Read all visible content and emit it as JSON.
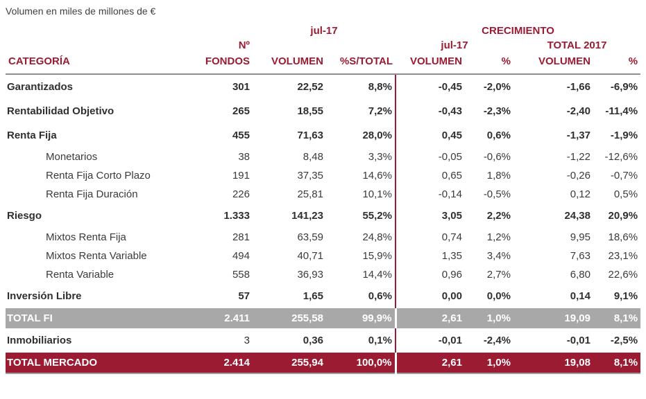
{
  "title": "Volumen en miles de millones de €",
  "colors": {
    "maroon": "#9A1B32",
    "gray_band": "#A8A8A8",
    "header_rule": "#8f8f8f",
    "text": "#3a3a3a"
  },
  "table": {
    "header": {
      "jul17_group": "jul-17",
      "crecimiento_group": "CRECIMIENTO",
      "num": "Nº",
      "crec_jul17": "jul-17",
      "total_2017": "TOTAL 2017",
      "categoria": "CATEGORÍA",
      "fondos": "FONDOS",
      "volumen": "VOLUMEN",
      "stotal": "%S/TOTAL",
      "volumen_crec": "VOLUMEN",
      "pct_crec": "%",
      "volumen_total": "VOLUMEN",
      "pct_total": "%"
    },
    "rows": [
      {
        "label": "Garantizados",
        "style": "bold",
        "values": [
          "301",
          "22,52",
          "8,8%",
          "-0,45",
          "-2,0%",
          "-1,66",
          "-6,9%"
        ]
      },
      {
        "label": "Rentabilidad Objetivo",
        "style": "bold",
        "values": [
          "265",
          "18,55",
          "7,2%",
          "-0,43",
          "-2,3%",
          "-2,40",
          "-11,4%"
        ]
      },
      {
        "label": "Renta Fija",
        "style": "bold",
        "values": [
          "455",
          "71,63",
          "28,0%",
          "0,45",
          "0,6%",
          "-1,37",
          "-1,9%"
        ]
      },
      {
        "label": "Monetarios",
        "style": "sub",
        "values": [
          "38",
          "8,48",
          "3,3%",
          "-0,05",
          "-0,6%",
          "-1,22",
          "-12,6%"
        ]
      },
      {
        "label": "Renta Fija Corto Plazo",
        "style": "sub",
        "values": [
          "191",
          "37,35",
          "14,6%",
          "0,65",
          "1,8%",
          "-0,26",
          "-0,7%"
        ]
      },
      {
        "label": "Renta Fija Duración",
        "style": "sub",
        "values": [
          "226",
          "25,81",
          "10,1%",
          "-0,14",
          "-0,5%",
          "0,12",
          "0,5%"
        ]
      },
      {
        "label": "Riesgo",
        "style": "bold",
        "values": [
          "1.333",
          "141,23",
          "55,2%",
          "3,05",
          "2,2%",
          "24,38",
          "20,9%"
        ]
      },
      {
        "label": "Mixtos Renta Fija",
        "style": "sub",
        "values": [
          "281",
          "63,59",
          "24,8%",
          "0,74",
          "1,2%",
          "9,95",
          "18,6%"
        ]
      },
      {
        "label": "Mixtos Renta Variable",
        "style": "sub",
        "values": [
          "494",
          "40,71",
          "15,9%",
          "1,35",
          "3,4%",
          "7,63",
          "23,1%"
        ]
      },
      {
        "label": "Renta Variable",
        "style": "sub",
        "values": [
          "558",
          "36,93",
          "14,4%",
          "0,96",
          "2,7%",
          "6,80",
          "22,6%"
        ]
      },
      {
        "label": "Inversión Libre",
        "style": "bold",
        "values": [
          "57",
          "1,65",
          "0,6%",
          "0,00",
          "0,0%",
          "0,14",
          "9,1%"
        ]
      },
      {
        "label": "TOTAL FI",
        "style": "total-fi",
        "values": [
          "2.411",
          "255,58",
          "99,9%",
          "2,61",
          "1,0%",
          "19,09",
          "8,1%"
        ]
      },
      {
        "label": "Inmobiliarios",
        "style": "bold",
        "fondos_light": true,
        "values": [
          "3",
          "0,36",
          "0,1%",
          "-0,01",
          "-2,4%",
          "-0,01",
          "-2,5%"
        ]
      },
      {
        "label": "TOTAL MERCADO",
        "style": "total-mercado",
        "values": [
          "2.414",
          "255,94",
          "100,0%",
          "2,61",
          "1,0%",
          "19,08",
          "8,1%"
        ]
      }
    ]
  }
}
